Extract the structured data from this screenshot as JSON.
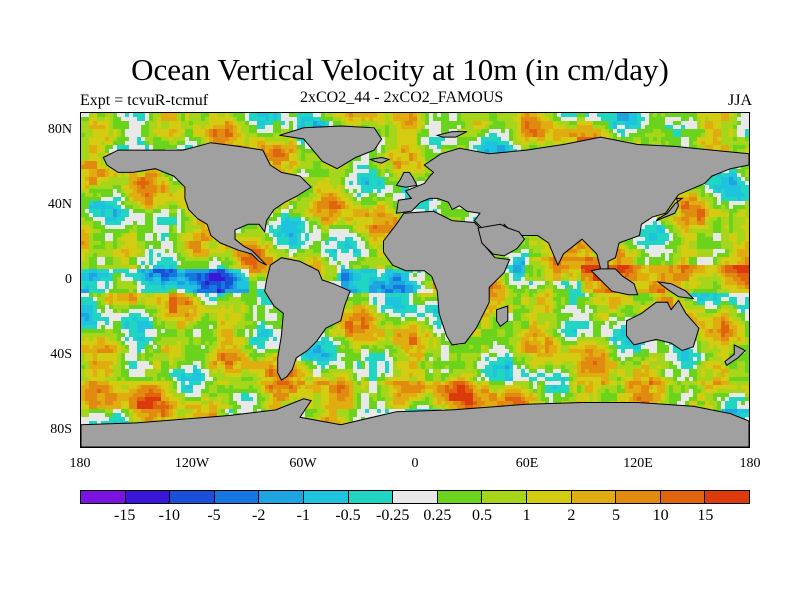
{
  "title": "Ocean Vertical Velocity at 10m (in cm/day)",
  "expt": "Expt = tcvuR-tcmuf",
  "subtitle": "2xCO2_44 - 2xCO2_FAMOUS",
  "season": "JJA",
  "lat_labels": [
    "80N",
    "40N",
    "0",
    "40S",
    "80S"
  ],
  "lon_labels": [
    "180",
    "120W",
    "60W",
    "0",
    "60E",
    "120E",
    "180"
  ],
  "land_color": "#a0a0a0",
  "colorbar": {
    "colors": [
      "#7a12e0",
      "#3a16d8",
      "#1a4fd8",
      "#1478e0",
      "#1ea4e0",
      "#1ec3df",
      "#20d6c2",
      "#e8e8e8",
      "#6ad41c",
      "#a6d61a",
      "#d4cc10",
      "#e0ac10",
      "#e08a10",
      "#e0640e",
      "#dc3a0a"
    ],
    "labels": [
      "-15",
      "-10",
      "-5",
      "-2",
      "-1",
      "-0.5",
      "-0.25",
      "0.25",
      "0.5",
      "1",
      "2",
      "5",
      "10",
      "15"
    ]
  }
}
